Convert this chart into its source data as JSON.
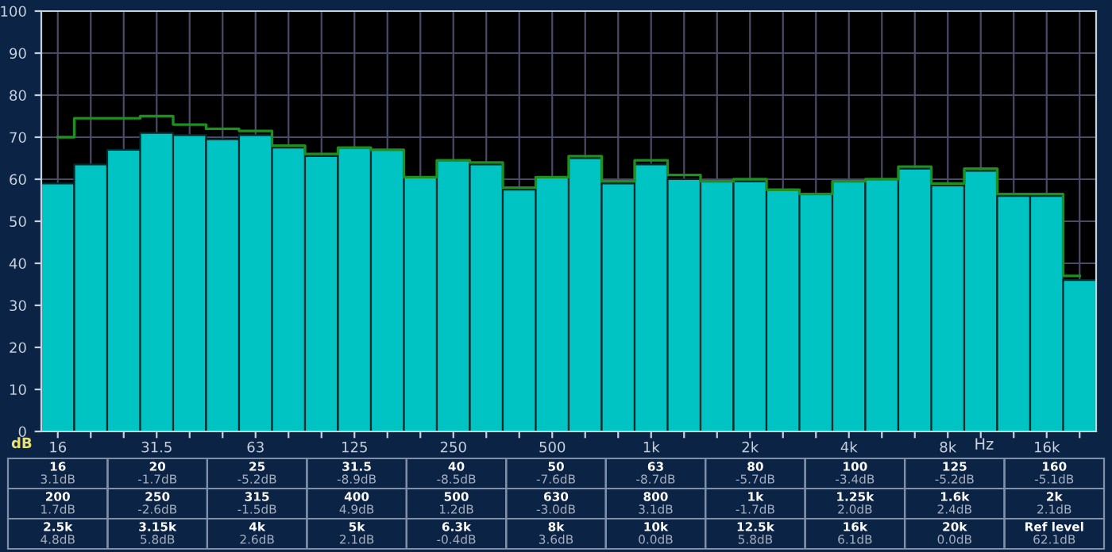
{
  "chart_data": {
    "type": "bar",
    "categories": [
      "16",
      null,
      null,
      "31.5",
      null,
      null,
      "63",
      null,
      null,
      "125",
      null,
      null,
      "250",
      null,
      null,
      "500",
      null,
      null,
      "1k",
      null,
      null,
      "2k",
      null,
      null,
      "4k",
      null,
      null,
      "8k",
      null,
      null,
      "16k",
      null
    ],
    "series": [
      {
        "color": "#00c4c4",
        "values": [
          59,
          63.5,
          67,
          71,
          70.5,
          69.5,
          70.5,
          67.5,
          65.5,
          67.5,
          67,
          60.5,
          64.5,
          63.5,
          57.5,
          60.5,
          65,
          59,
          63.5,
          60,
          59.5,
          59.5,
          57.5,
          56.5,
          59.5,
          60,
          62.5,
          58.5,
          62,
          56,
          56,
          36
        ]
      },
      {
        "type": "step",
        "color": "#1f8f1f",
        "values": [
          70,
          74.5,
          74.5,
          75,
          73,
          72,
          71.5,
          68,
          66,
          67.5,
          67,
          60.5,
          64.5,
          64,
          58,
          60.5,
          65.5,
          59.5,
          64.5,
          61,
          59.5,
          60,
          57.5,
          56.5,
          59.5,
          60,
          63,
          59,
          62.5,
          56.5,
          56.5,
          37
        ]
      }
    ],
    "ylim": [
      0,
      100
    ],
    "yticks": [
      0,
      10,
      20,
      30,
      40,
      50,
      60,
      70,
      80,
      90,
      100
    ],
    "ylabel": "dB",
    "xlabel": "Hz",
    "grid": true,
    "annotations": [
      "16\n3.1dB",
      "20\n-1.7dB",
      "25\n-5.2dB",
      "31.5\n-8.9dB",
      "40\n-8.5dB",
      "50\n-7.6dB",
      "63\n-8.7dB",
      "80\n-5.7dB",
      "100\n-3.4dB",
      "125\n-5.2dB",
      "160\n-5.1dB",
      "200\n1.7dB",
      "250\n-2.6dB",
      "315\n-1.5dB",
      "400\n4.9dB",
      "500\n1.2dB",
      "630\n-3.0dB",
      "800\n3.1dB",
      "1k\n-1.7dB",
      "1.25k\n2.0dB",
      "1.6k\n2.4dB",
      "2k\n2.1dB",
      "2.5k\n4.8dB",
      "3.15k\n5.8dB",
      "4k\n2.6dB",
      "5k\n2.1dB",
      "6.3k\n-0.4dB",
      "8k\n3.6dB",
      "10k\n0.0dB",
      "12.5k\n5.8dB",
      "16k\n6.1dB",
      "20k\n0.0dB",
      "Ref level\n62.1dB"
    ]
  }
}
